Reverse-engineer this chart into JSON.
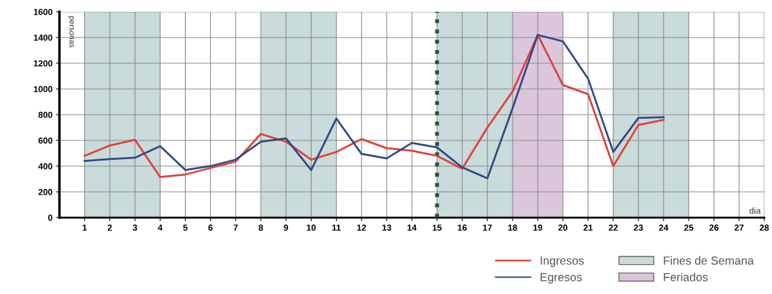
{
  "chart_data": {
    "type": "line",
    "xlabel": "dia",
    "ylabel": "personas",
    "x": [
      1,
      2,
      3,
      4,
      5,
      6,
      7,
      8,
      9,
      10,
      11,
      12,
      13,
      14,
      15,
      16,
      17,
      18,
      19,
      20,
      21,
      22,
      23,
      24
    ],
    "series": [
      {
        "name": "Ingresos",
        "color": "#e0403a",
        "values": [
          480,
          560,
          605,
          315,
          335,
          385,
          435,
          650,
          590,
          450,
          510,
          610,
          540,
          520,
          480,
          380,
          700,
          980,
          1420,
          1030,
          960,
          400,
          720,
          760
        ]
      },
      {
        "name": "Egresos",
        "color": "#2e4a85",
        "values": [
          440,
          455,
          465,
          555,
          370,
          400,
          450,
          590,
          615,
          370,
          770,
          495,
          460,
          580,
          545,
          390,
          305,
          850,
          1420,
          1370,
          1080,
          510,
          775,
          780
        ]
      }
    ],
    "xlim": [
      0,
      28
    ],
    "xticks": [
      1,
      2,
      3,
      4,
      5,
      6,
      7,
      8,
      9,
      10,
      11,
      12,
      13,
      14,
      15,
      16,
      17,
      18,
      19,
      20,
      21,
      22,
      23,
      24,
      25,
      26,
      27,
      28
    ],
    "ylim": [
      0,
      1600
    ],
    "yticks": [
      0,
      200,
      400,
      600,
      800,
      1000,
      1200,
      1400,
      1600
    ],
    "bands": [
      {
        "axis": "x",
        "from": 1,
        "to": 4,
        "label": "Fines de Semana",
        "color": "#c9dbda"
      },
      {
        "axis": "x",
        "from": 8,
        "to": 11,
        "color": "#c9dbda"
      },
      {
        "axis": "x",
        "from": 15,
        "to": 18,
        "color": "#c9dbda"
      },
      {
        "axis": "x",
        "from": 22,
        "to": 25,
        "color": "#c9dbda"
      },
      {
        "axis": "x",
        "from": 18,
        "to": 20,
        "label": "Feriados",
        "color": "#dcc6dc"
      }
    ],
    "ref_lines": [
      {
        "axis": "x",
        "value": 15,
        "color": "#2f4f3f",
        "line_style": "dotted"
      }
    ],
    "grid": true,
    "legend": "bottom right",
    "marker": "none",
    "line_style": "solid"
  }
}
